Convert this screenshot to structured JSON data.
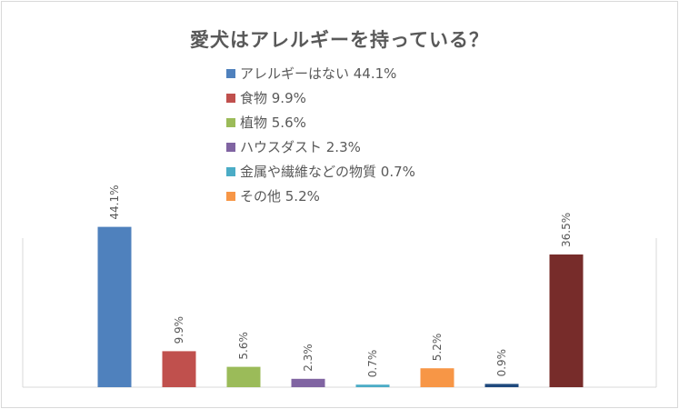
{
  "chart_data": {
    "type": "bar",
    "title": "愛犬はアレルギーを持っている？",
    "xlabel": "",
    "ylabel": "",
    "ylim": [
      0,
      50
    ],
    "grid": false,
    "legend_position": "top-center",
    "series": [
      {
        "name": "アレルギーはない 44.1%",
        "color": "#4f81bd",
        "value": 44.1,
        "label": "44.1%"
      },
      {
        "name": "食物 9.9%",
        "color": "#c0504d",
        "value": 9.9,
        "label": "9.9%"
      },
      {
        "name": "植物 5.6%",
        "color": "#9bbb59",
        "value": 5.6,
        "label": "5.6%"
      },
      {
        "name": "ハウスダスト 2.3%",
        "color": "#8064a2",
        "value": 2.3,
        "label": "2.3%"
      },
      {
        "name": "金属や繊維などの物質 0.7%",
        "color": "#4bacc6",
        "value": 0.7,
        "label": "0.7%"
      },
      {
        "name": "その他 5.2%",
        "color": "#f79646",
        "value": 5.2,
        "label": "5.2%"
      },
      {
        "color": "#1f497d",
        "value": 0.9,
        "label": "0.9%"
      },
      {
        "color": "#772c2a",
        "value": 36.5,
        "label": "36.5%"
      }
    ]
  }
}
